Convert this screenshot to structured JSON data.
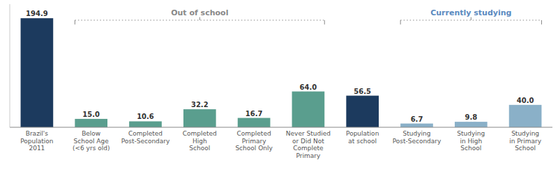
{
  "chart_data": {
    "type": "bar",
    "categories": [
      "Brazil's\nPopulation\n2011",
      "Below\nSchool Age\n(<6 yrs old)",
      "Completed\nPost-Secondary",
      "Completed\nHigh\nSchool",
      "Completed\nPrimary\nSchool Only",
      "Never Studied\nor Did Not\nComplete\nPrimary",
      "Population\nat school",
      "Studying\nPost-Secondary",
      "Studying\nin High\nSchool",
      "Studying\nin Primary\nSchool"
    ],
    "values": [
      194.9,
      15.0,
      10.6,
      32.2,
      16.7,
      64.0,
      56.5,
      6.7,
      9.8,
      40.0
    ],
    "value_labels": [
      "194.9",
      "15.0",
      "10.6",
      "32.2",
      "16.7",
      "64.0",
      "56.5",
      "6.7",
      "9.8",
      "40.0"
    ],
    "colors": [
      "#1c3a5e",
      "#5a9e8e",
      "#5a9e8e",
      "#5a9e8e",
      "#5a9e8e",
      "#5a9e8e",
      "#1c3a5e",
      "#8ab0c8",
      "#8ab0c8",
      "#8ab0c8"
    ],
    "ylim": [
      0,
      220
    ],
    "grid": false,
    "data_labels": true,
    "tick_labels": "x",
    "annotations": [
      {
        "text": "Out of school",
        "start": 1,
        "end": 5,
        "color": "#888888"
      },
      {
        "text": "Currently studying",
        "start": 7,
        "end": 9,
        "color": "#5a8abf"
      }
    ]
  }
}
